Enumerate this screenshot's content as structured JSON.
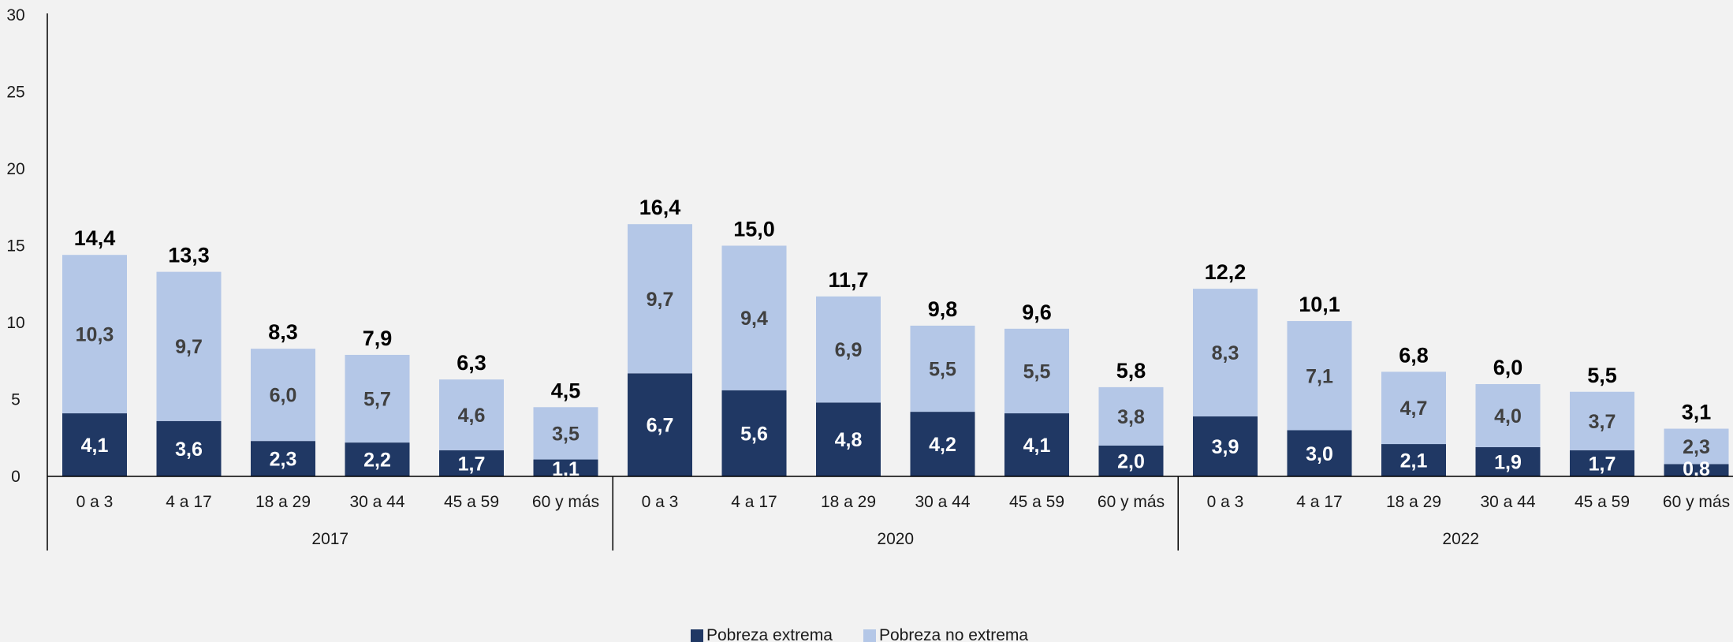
{
  "chart_data": {
    "type": "bar",
    "stacked": true,
    "title": "",
    "xlabel": "",
    "ylabel": "",
    "ylim": [
      0,
      30
    ],
    "yticks": [
      "0",
      "5",
      "10",
      "15",
      "20",
      "25",
      "30"
    ],
    "grid": false,
    "legend_position": "bottom",
    "groups": [
      {
        "label": "2017",
        "categories": [
          "0 a 3",
          "4 a 17",
          "18 a 29",
          "30 a 44",
          "45 a 59",
          "60 y más"
        ],
        "extreme": [
          4.1,
          3.6,
          2.3,
          2.2,
          1.7,
          1.1
        ],
        "non_extreme": [
          10.3,
          9.7,
          6.0,
          5.7,
          4.6,
          3.5
        ],
        "totals": [
          14.4,
          13.3,
          8.3,
          7.9,
          6.3,
          4.5
        ],
        "extreme_labels": [
          "4,1",
          "3,6",
          "2,3",
          "2,2",
          "1,7",
          "1,1"
        ],
        "non_extreme_labels": [
          "10,3",
          "9,7",
          "6,0",
          "5,7",
          "4,6",
          "3,5"
        ],
        "total_labels": [
          "14,4",
          "13,3",
          "8,3",
          "7,9",
          "6,3",
          "4,5"
        ]
      },
      {
        "label": "2020",
        "categories": [
          "0 a 3",
          "4 a 17",
          "18 a 29",
          "30 a 44",
          "45 a 59",
          "60 y más"
        ],
        "extreme": [
          6.7,
          5.6,
          4.8,
          4.2,
          4.1,
          2.0
        ],
        "non_extreme": [
          9.7,
          9.4,
          6.9,
          5.5,
          5.5,
          3.8
        ],
        "totals": [
          16.4,
          15.0,
          11.7,
          9.8,
          9.6,
          5.8
        ],
        "extreme_labels": [
          "6,7",
          "5,6",
          "4,8",
          "4,2",
          "4,1",
          "2,0"
        ],
        "non_extreme_labels": [
          "9,7",
          "9,4",
          "6,9",
          "5,5",
          "5,5",
          "3,8"
        ],
        "total_labels": [
          "16,4",
          "15,0",
          "11,7",
          "9,8",
          "9,6",
          "5,8"
        ]
      },
      {
        "label": "2022",
        "categories": [
          "0 a 3",
          "4 a 17",
          "18 a 29",
          "30 a 44",
          "45 a 59",
          "60 y más"
        ],
        "extreme": [
          3.9,
          3.0,
          2.1,
          1.9,
          1.7,
          0.8
        ],
        "non_extreme": [
          8.3,
          7.1,
          4.7,
          4.0,
          3.7,
          2.3
        ],
        "totals": [
          12.2,
          10.1,
          6.8,
          6.0,
          5.5,
          3.1
        ],
        "extreme_labels": [
          "3,9",
          "3,0",
          "2,1",
          "1,9",
          "1,7",
          "0,8"
        ],
        "non_extreme_labels": [
          "8,3",
          "7,1",
          "4,7",
          "4,0",
          "3,7",
          "2,3"
        ],
        "total_labels": [
          "12,2",
          "10,1",
          "6,8",
          "6,0",
          "5,5",
          "3,1"
        ]
      }
    ],
    "series": [
      {
        "name": "Pobreza extrema",
        "color": "#203864",
        "label_color": "#ffffff"
      },
      {
        "name": "Pobreza no extrema",
        "color": "#b4c7e7",
        "label_color": "#404040"
      }
    ]
  }
}
